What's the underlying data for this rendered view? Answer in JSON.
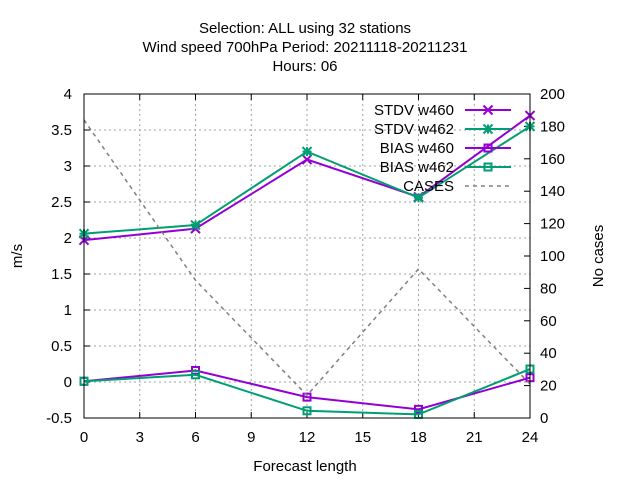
{
  "chart_data": {
    "type": "line",
    "title_lines": [
      "Selection: ALL using    32 stations",
      "Wind speed 700hPa   Period: 20211118-20211231",
      "Hours:  06"
    ],
    "xlabel": "Forecast length",
    "ylabel": "m/s",
    "y2label": "No cases",
    "xlim": [
      0,
      24
    ],
    "ylim": [
      -0.5,
      4
    ],
    "y2lim": [
      0,
      200
    ],
    "xticks": [
      "0",
      "3",
      "6",
      "9",
      "12",
      "15",
      "18",
      "21",
      "24"
    ],
    "yticks": [
      "-0.5",
      "0",
      "0.5",
      "1",
      "1.5",
      "2",
      "2.5",
      "3",
      "3.5",
      "4"
    ],
    "y2ticks": [
      "0",
      "20",
      "40",
      "60",
      "80",
      "100",
      "120",
      "140",
      "160",
      "180",
      "200"
    ],
    "grid": true,
    "legend_position": "top-right",
    "x": [
      0,
      6,
      12,
      18,
      24
    ],
    "series": [
      {
        "name": "STDV w460",
        "axis": "y",
        "color": "#9400d3",
        "marker": "x",
        "values": [
          1.97,
          2.13,
          3.09,
          2.57,
          3.7
        ]
      },
      {
        "name": "STDV w462",
        "axis": "y",
        "color": "#009e73",
        "marker": "star",
        "values": [
          2.06,
          2.18,
          3.2,
          2.56,
          3.55
        ]
      },
      {
        "name": "BIAS w460",
        "axis": "y",
        "color": "#9400d3",
        "marker": "square",
        "values": [
          0.01,
          0.16,
          -0.21,
          -0.38,
          0.06
        ]
      },
      {
        "name": "BIAS w462",
        "axis": "y",
        "color": "#009e73",
        "marker": "square",
        "values": [
          0.01,
          0.1,
          -0.4,
          -0.45,
          0.18
        ]
      },
      {
        "name": "CASES",
        "axis": "y2",
        "color": "#808080",
        "marker": "none",
        "dashed": true,
        "values": [
          184,
          85,
          14,
          92,
          21
        ]
      }
    ]
  }
}
